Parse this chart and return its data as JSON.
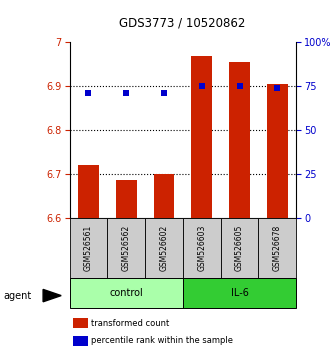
{
  "title": "GDS3773 / 10520862",
  "samples": [
    "GSM526561",
    "GSM526562",
    "GSM526602",
    "GSM526603",
    "GSM526605",
    "GSM526678"
  ],
  "bar_values": [
    6.72,
    6.685,
    6.7,
    6.97,
    6.955,
    6.905
  ],
  "bar_color": "#cc2200",
  "dot_color": "#0000cc",
  "ylim_left": [
    6.6,
    7.0
  ],
  "yticks_left": [
    6.6,
    6.7,
    6.8,
    6.9,
    7.0
  ],
  "ytick_labels_left": [
    "6.6",
    "6.7",
    "6.8",
    "6.9",
    "7"
  ],
  "yticks_right": [
    0,
    25,
    50,
    75,
    100
  ],
  "ytick_labels_right": [
    "0",
    "25",
    "50",
    "75",
    "100%"
  ],
  "groups": [
    {
      "label": "control",
      "indices": [
        0,
        1,
        2
      ],
      "color": "#aaffaa"
    },
    {
      "label": "IL-6",
      "indices": [
        3,
        4,
        5
      ],
      "color": "#33cc33"
    }
  ],
  "bar_bottom": 6.6,
  "legend_items": [
    {
      "label": "transformed count",
      "color": "#cc2200"
    },
    {
      "label": "percentile rank within the sample",
      "color": "#0000cc"
    }
  ],
  "percentile_pct": [
    71,
    71,
    71,
    75,
    75,
    74
  ],
  "label_bg_color": "#cccccc",
  "grid_lines": [
    6.7,
    6.8,
    6.9
  ]
}
